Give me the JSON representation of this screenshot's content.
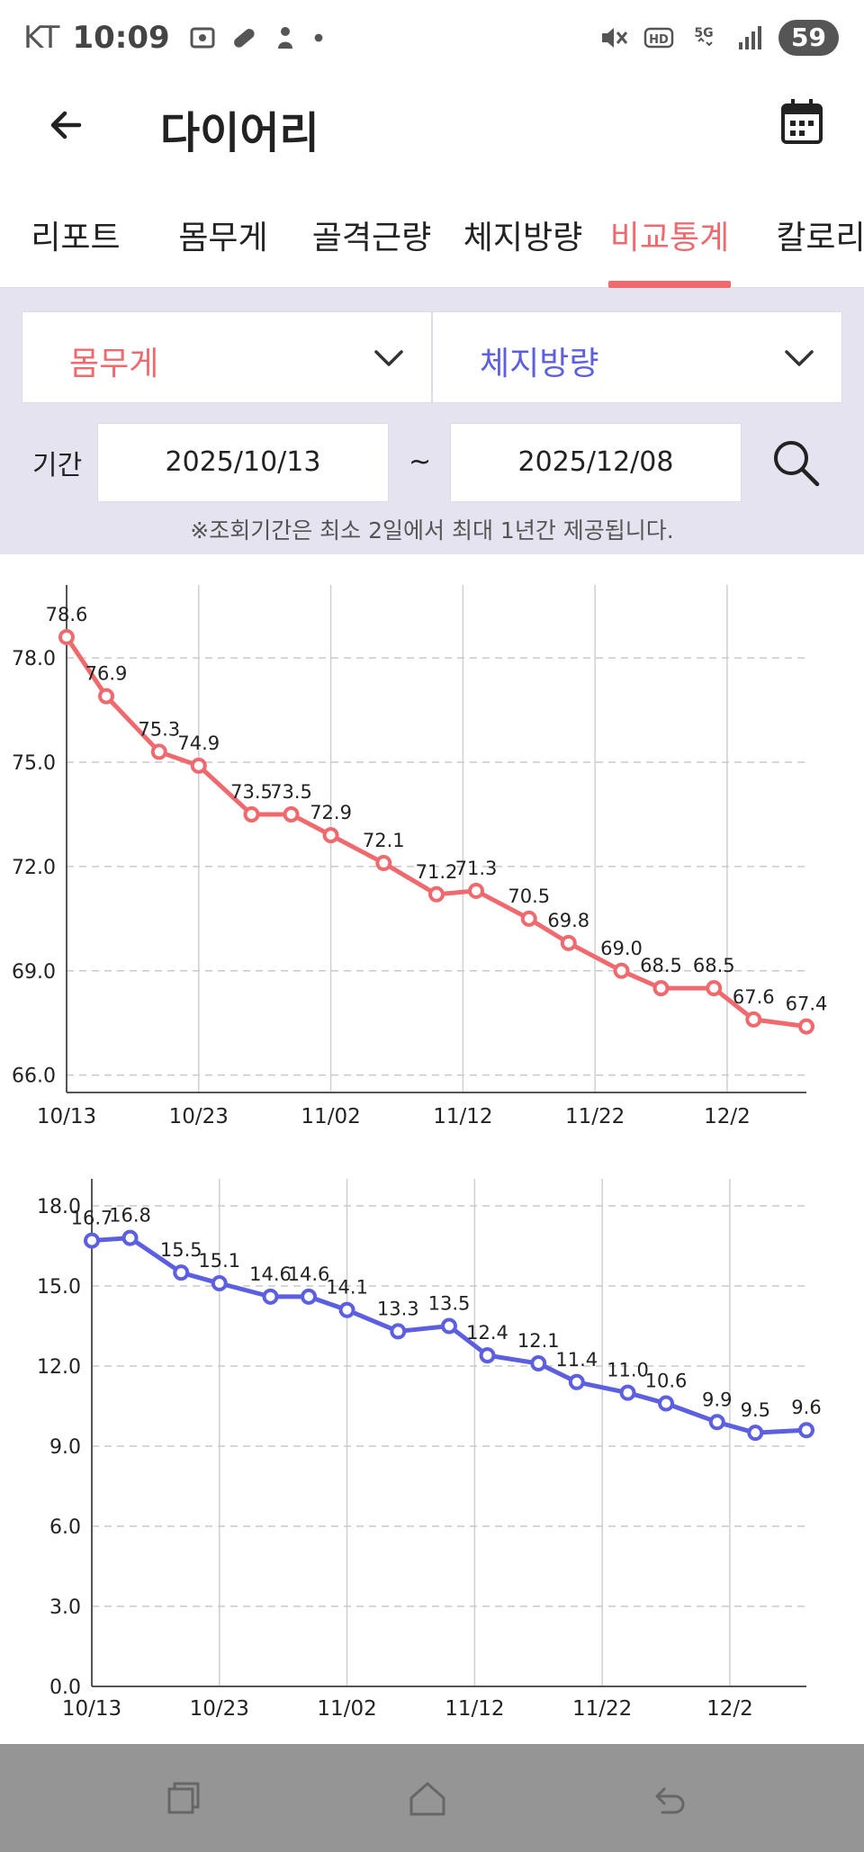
{
  "status": {
    "carrier": "KT",
    "time": "10:09",
    "battery": "59",
    "left_icons": [
      "screen-capture-icon",
      "pill-icon",
      "baby-icon",
      "dot-icon"
    ],
    "right_icons": [
      "mute-icon",
      "hd-icon",
      "5g-icon",
      "signal-icon"
    ]
  },
  "header": {
    "title": "다이어리",
    "back_icon": "arrow-left-icon",
    "calendar_icon": "calendar-icon"
  },
  "tabs": [
    {
      "label": "리포트",
      "active": false
    },
    {
      "label": "몸무게",
      "active": false
    },
    {
      "label": "골격근량",
      "active": false
    },
    {
      "label": "체지방량",
      "active": false
    },
    {
      "label": "비교통계",
      "active": true
    },
    {
      "label": "칼로리",
      "active": false
    }
  ],
  "filters": {
    "selector_1": "몸무게",
    "selector_2": "체지방량",
    "period_label": "기간",
    "start_date": "2025/10/13",
    "separator": "~",
    "end_date": "2025/12/08",
    "note": "※조회기간은 최소 2일에서 최대 1년간 제공됩니다."
  },
  "colors": {
    "accent_red": "#ef6a6e",
    "accent_blue": "#5b5fe0",
    "panel_bg": "#e5e3ef"
  },
  "chart_data": [
    {
      "type": "line",
      "color": "#ef6a6e",
      "x_ticks": [
        "10/13",
        "10/23",
        "11/02",
        "11/12",
        "11/22",
        "12/2"
      ],
      "y_ticks": [
        "78.0",
        "75.0",
        "72.0",
        "69.0",
        "66.0"
      ],
      "ylim": [
        65.5,
        80.1
      ],
      "grid": true,
      "series": [
        {
          "values": [
            {
              "day": 0,
              "y": 78.6
            },
            {
              "day": 3,
              "y": 76.9
            },
            {
              "day": 7,
              "y": 75.3
            },
            {
              "day": 10,
              "y": 74.9
            },
            {
              "day": 14,
              "y": 73.5
            },
            {
              "day": 17,
              "y": 73.5
            },
            {
              "day": 20,
              "y": 72.9
            },
            {
              "day": 24,
              "y": 72.1
            },
            {
              "day": 28,
              "y": 71.2
            },
            {
              "day": 31,
              "y": 71.3
            },
            {
              "day": 35,
              "y": 70.5
            },
            {
              "day": 38,
              "y": 69.8
            },
            {
              "day": 42,
              "y": 69.0
            },
            {
              "day": 45,
              "y": 68.5
            },
            {
              "day": 49,
              "y": 68.5
            },
            {
              "day": 52,
              "y": 67.6
            },
            {
              "day": 56,
              "y": 67.4
            }
          ]
        }
      ]
    },
    {
      "type": "line",
      "color": "#5b5fe0",
      "x_ticks": [
        "10/13",
        "10/23",
        "11/02",
        "11/12",
        "11/22",
        "12/2"
      ],
      "y_ticks": [
        "18.0",
        "15.0",
        "12.0",
        "9.0",
        "6.0",
        "3.0",
        "0.0"
      ],
      "ylim": [
        0,
        18
      ],
      "grid": true,
      "series": [
        {
          "values": [
            {
              "day": 0,
              "y": 16.7
            },
            {
              "day": 3,
              "y": 16.8
            },
            {
              "day": 7,
              "y": 15.5
            },
            {
              "day": 10,
              "y": 15.1
            },
            {
              "day": 14,
              "y": 14.6
            },
            {
              "day": 17,
              "y": 14.6
            },
            {
              "day": 20,
              "y": 14.1
            },
            {
              "day": 24,
              "y": 13.3
            },
            {
              "day": 28,
              "y": 13.5
            },
            {
              "day": 31,
              "y": 12.4
            },
            {
              "day": 35,
              "y": 12.1
            },
            {
              "day": 38,
              "y": 11.4
            },
            {
              "day": 42,
              "y": 11.0
            },
            {
              "day": 45,
              "y": 10.6
            },
            {
              "day": 49,
              "y": 9.9
            },
            {
              "day": 52,
              "y": 9.5
            },
            {
              "day": 56,
              "y": 9.6
            }
          ]
        }
      ]
    }
  ],
  "nav": {
    "icons": [
      "recent-apps-icon",
      "home-icon",
      "back-icon"
    ]
  }
}
